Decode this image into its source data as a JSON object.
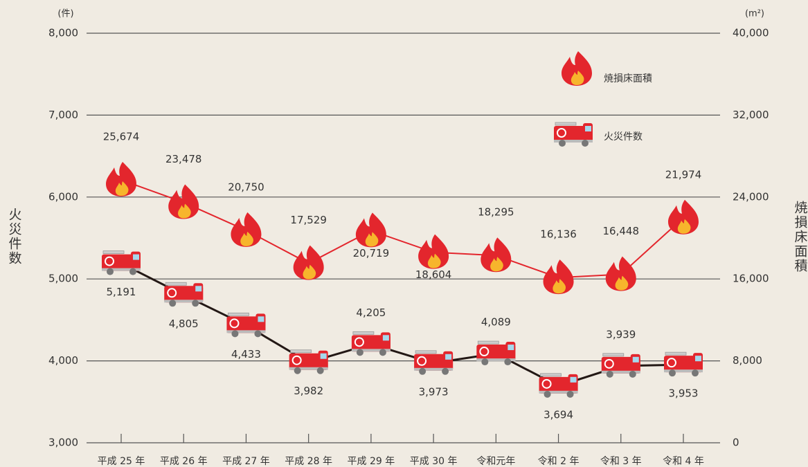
{
  "chart_data": {
    "type": "line",
    "categories": [
      "平成 25 年",
      "平成 26 年",
      "平成 27 年",
      "平成 28 年",
      "平成 29 年",
      "平成 30 年",
      "令和元年",
      "令和 2 年",
      "令和 3 年",
      "令和 4 年"
    ],
    "series": [
      {
        "name": "火災件数",
        "color": "#231815",
        "values": [
          5191,
          4805,
          4433,
          3982,
          4205,
          3973,
          4089,
          3694,
          3939,
          3953
        ],
        "value_labels": [
          "5,191",
          "4,805",
          "4,433",
          "3,982",
          "4,205",
          "3,973",
          "4,089",
          "3,694",
          "3,939",
          "3,953"
        ]
      },
      {
        "name": "焼損床面積",
        "color": "#e3262d",
        "axis": "y2",
        "values": [
          25674,
          23478,
          20750,
          17529,
          20719,
          18604,
          18295,
          16136,
          16448,
          21974
        ],
        "value_labels": [
          "25,674",
          "23,478",
          "20,750",
          "17,529",
          "20,719",
          "18,604",
          "18,295",
          "16,136",
          "16,448",
          "21,974"
        ]
      }
    ],
    "y_label": "火災件数",
    "y2_label": "焼損床面積",
    "y_unit": "(件)",
    "y2_unit": "(m²)",
    "ylim": [
      3000,
      8000
    ],
    "yticks": [
      {
        "value": 3000,
        "label": "3,000"
      },
      {
        "value": 4000,
        "label": "4,000"
      },
      {
        "value": 5000,
        "label": "5,000"
      },
      {
        "value": 6000,
        "label": "6,000"
      },
      {
        "value": 7000,
        "label": "7,000"
      },
      {
        "value": 8000,
        "label": "8,000"
      }
    ],
    "y2lim": [
      0,
      40000
    ],
    "y2ticks": [
      0,
      {
        "value": 8000,
        "label": "8,000"
      },
      {
        "value": 16000,
        "label": "16,000"
      },
      {
        "value": 24000,
        "label": "24,000"
      },
      {
        "value": 32000,
        "label": "32,000"
      },
      {
        "value": 40000,
        "label": "40,000"
      }
    ],
    "grid": true
  }
}
